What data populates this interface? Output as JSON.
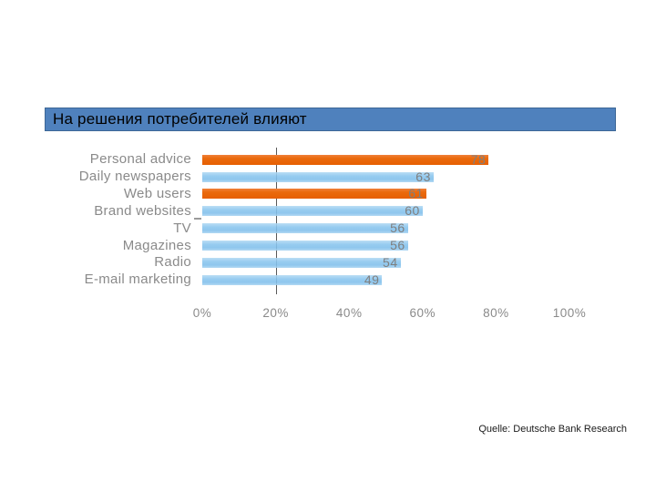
{
  "slide": {
    "title": "На решения потребителей влияют",
    "source": "Quelle: Deutsche Bank Research"
  },
  "chart_data": {
    "type": "bar",
    "orientation": "horizontal",
    "title": "На решения потребителей влияют",
    "categories": [
      "Personal advice",
      "Daily newspapers",
      "Web users",
      "Brand websites",
      "TV",
      "Magazines",
      "Radio",
      "E-mail marketing"
    ],
    "values": [
      78,
      63,
      61,
      60,
      56,
      56,
      54,
      49
    ],
    "value_suffix_axis": "%",
    "xlim": [
      0,
      100
    ],
    "x_ticks": [
      "0%",
      "20%",
      "40%",
      "60%",
      "80%",
      "100%"
    ],
    "highlight_indices": [
      0,
      2
    ],
    "highlighted_categories": [
      "Personal advice",
      "Web users"
    ],
    "gridline_at_percent": 20,
    "legend": "none",
    "grid": "single vertical dashed line at 20%",
    "colors": {
      "bar_default": "#8FC3EA",
      "bar_highlight": "#E8650A",
      "title_bar_bg": "#4F81BD",
      "title_bar_border": "#3D6796",
      "label_gray": "#8A8A8A",
      "gridline": "#595959"
    }
  }
}
